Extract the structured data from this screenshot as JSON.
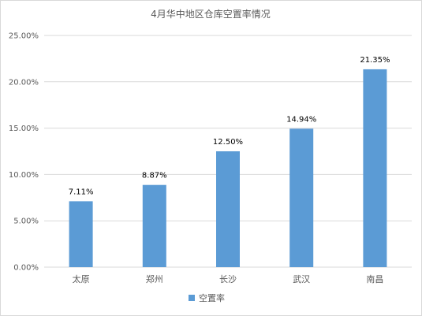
{
  "chart_data": {
    "type": "bar",
    "title": "4月华中地区仓库空置率情况",
    "categories": [
      "太原",
      "郑州",
      "长沙",
      "武汉",
      "南昌"
    ],
    "series": [
      {
        "name": "空置率",
        "values": [
          7.11,
          8.87,
          12.5,
          14.94,
          21.35
        ],
        "labels": [
          "7.11%",
          "8.87%",
          "12.50%",
          "14.94%",
          "21.35%"
        ],
        "color": "#5b9bd5"
      }
    ],
    "y_ticks": [
      "0.00%",
      "5.00%",
      "10.00%",
      "15.00%",
      "20.00%",
      "25.00%"
    ],
    "ylim": [
      0,
      25
    ],
    "grid": true,
    "legend_position": "bottom"
  }
}
